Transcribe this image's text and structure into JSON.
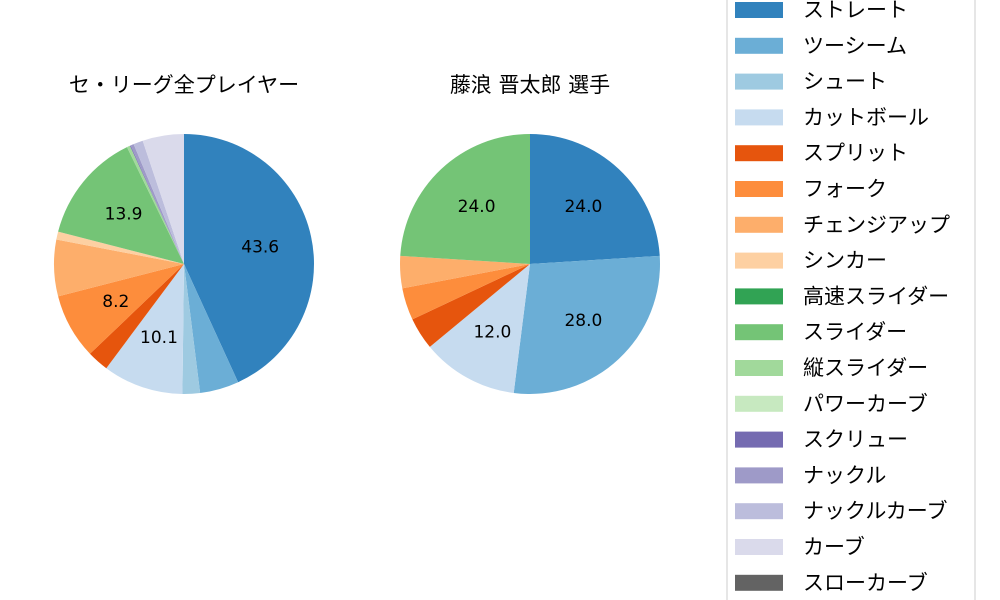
{
  "chart_data": [
    {
      "type": "pie",
      "title": "セ・リーグ全プレイヤー",
      "labels": [
        "ストレート",
        "ツーシーム",
        "シュート",
        "カットボール",
        "スプリット",
        "フォーク",
        "チェンジアップ",
        "シンカー",
        "高速スライダー",
        "スライダー",
        "縦スライダー",
        "パワーカーブ",
        "スクリュー",
        "ナックル",
        "ナックルカーブ",
        "カーブ",
        "スローカーブ"
      ],
      "values": [
        43.6,
        4.9,
        2.2,
        10.1,
        2.7,
        8.2,
        7.1,
        1.0,
        0.0,
        13.9,
        0.4,
        0.0,
        0.1,
        0.4,
        1.2,
        5.2,
        0.0
      ],
      "value_labels": [
        "43.6",
        "",
        "",
        "10.1",
        "",
        "8.2",
        "",
        "",
        "",
        "13.9",
        "",
        "",
        "",
        "",
        "",
        "",
        ""
      ],
      "start_angle": 90,
      "direction": "clockwise"
    },
    {
      "type": "pie",
      "title": "藤浪 晋太郎  選手",
      "labels": [
        "ストレート",
        "ツーシーム",
        "シュート",
        "カットボール",
        "スプリット",
        "フォーク",
        "チェンジアップ",
        "シンカー",
        "高速スライダー",
        "スライダー",
        "縦スライダー",
        "パワーカーブ",
        "スクリュー",
        "ナックル",
        "ナックルカーブ",
        "カーブ",
        "スローカーブ"
      ],
      "values": [
        24.0,
        28.0,
        0,
        12.0,
        4.0,
        4.0,
        4.0,
        0,
        0,
        24.0,
        0,
        0,
        0,
        0,
        0,
        0,
        0
      ],
      "value_labels": [
        "24.0",
        "28.0",
        "",
        "12.0",
        "",
        "",
        "",
        "",
        "",
        "24.0",
        "",
        "",
        "",
        "",
        "",
        "",
        ""
      ],
      "start_angle": 90,
      "direction": "clockwise"
    }
  ],
  "legend": {
    "placement": "right",
    "items": [
      {
        "label": "ストレート",
        "color": "#3182bd"
      },
      {
        "label": "ツーシーム",
        "color": "#6baed6"
      },
      {
        "label": "シュート",
        "color": "#9ecae1"
      },
      {
        "label": "カットボール",
        "color": "#c6dbef"
      },
      {
        "label": "スプリット",
        "color": "#e6550d"
      },
      {
        "label": "フォーク",
        "color": "#fd8d3c"
      },
      {
        "label": "チェンジアップ",
        "color": "#fdae6b"
      },
      {
        "label": "シンカー",
        "color": "#fdd0a2"
      },
      {
        "label": "高速スライダー",
        "color": "#31a354"
      },
      {
        "label": "スライダー",
        "color": "#74c476"
      },
      {
        "label": "縦スライダー",
        "color": "#a1d99b"
      },
      {
        "label": "パワーカーブ",
        "color": "#c7e9c0"
      },
      {
        "label": "スクリュー",
        "color": "#756bb1"
      },
      {
        "label": "ナックル",
        "color": "#9e9ac8"
      },
      {
        "label": "ナックルカーブ",
        "color": "#bcbddc"
      },
      {
        "label": "カーブ",
        "color": "#dadaeb"
      },
      {
        "label": "スローカーブ",
        "color": "#636363"
      }
    ]
  }
}
